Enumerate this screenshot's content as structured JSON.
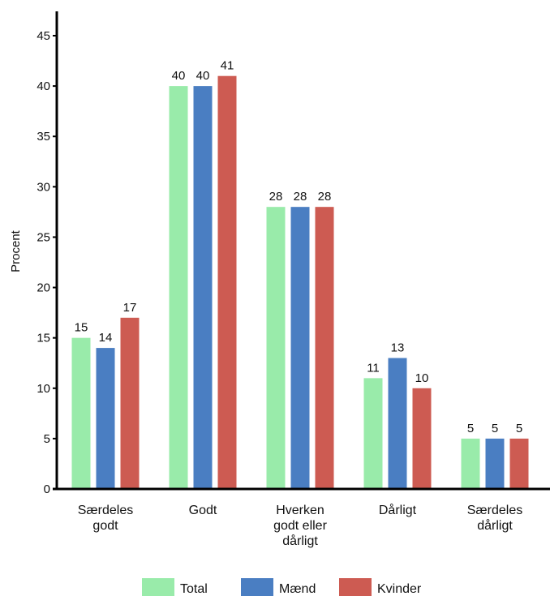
{
  "chart_data": {
    "type": "bar",
    "categories": [
      [
        "Særdeles",
        "godt"
      ],
      [
        "Godt"
      ],
      [
        "Hverken",
        "godt eller",
        "dårligt"
      ],
      [
        "Dårligt"
      ],
      [
        "Særdeles",
        "dårligt"
      ]
    ],
    "series": [
      {
        "name": "Total",
        "color": "#99ebaa",
        "values": [
          15,
          40,
          28,
          11,
          5
        ]
      },
      {
        "name": "Mænd",
        "color": "#4a7ec2",
        "values": [
          14,
          40,
          28,
          13,
          5
        ]
      },
      {
        "name": "Kvinder",
        "color": "#cd5b52",
        "values": [
          17,
          41,
          28,
          10,
          5
        ]
      }
    ],
    "ylabel": "Procent",
    "ylim": [
      0,
      47
    ],
    "yticks": [
      0,
      5,
      10,
      15,
      20,
      25,
      30,
      35,
      40,
      45
    ],
    "legend_position": "bottom-center",
    "grid": false
  }
}
